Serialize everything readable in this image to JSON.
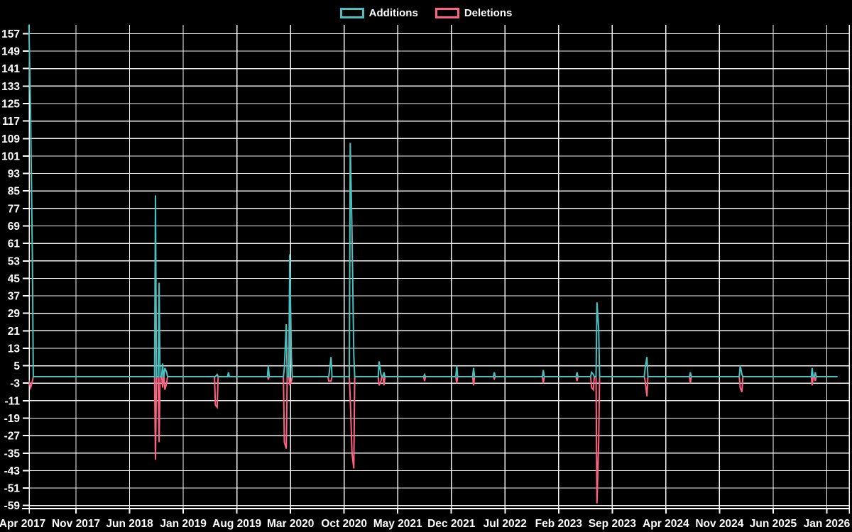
{
  "legend": {
    "items": [
      {
        "label": "Additions",
        "color": "#4bc0c0"
      },
      {
        "label": "Deletions",
        "color": "#ff6384"
      }
    ]
  },
  "chart_data": {
    "type": "line",
    "title": "",
    "grid": true,
    "legend_position": "top-center",
    "background_color": "#000000",
    "gridline_color": "#f2f2f2",
    "text_color": "#ffffff",
    "series_colors": {
      "additions": "#4bc0c0",
      "deletions": "#ff6384"
    },
    "series_names": [
      "Additions",
      "Deletions"
    ],
    "x_axis": {
      "tick_labels": [
        "Apr 2017",
        "Nov 2017",
        "Jun 2018",
        "Jan 2019",
        "Aug 2019",
        "Mar 2020",
        "Oct 2020",
        "May 2021",
        "Dec 2021",
        "Jul 2022",
        "Feb 2023",
        "Sep 2023",
        "Apr 2024",
        "Nov 2024",
        "Jun 2025",
        "Jan 2026"
      ],
      "months_per_tick": 7
    },
    "y_axis": {
      "ticks": [
        157,
        149,
        141,
        133,
        125,
        117,
        109,
        101,
        93,
        85,
        77,
        69,
        61,
        53,
        45,
        37,
        29,
        21,
        13,
        5,
        -3,
        -11,
        -19,
        -27,
        -35,
        -43,
        -51,
        -59
      ],
      "step": 8,
      "ylim": [
        -61,
        162
      ]
    },
    "baseline_value": 0,
    "data_start_month": 0.85,
    "data_end_month": 106.4,
    "points_note": "m = months after first tick (Apr 2017); additions/deletions are weekly spike values, series sit at 0 between events",
    "points": [
      {
        "m": 0.85,
        "additions": 161,
        "deletions": -2
      },
      {
        "m": 1.08,
        "additions": 118,
        "deletions": -5
      },
      {
        "m": 1.31,
        "additions": 55,
        "deletions": -2
      },
      {
        "m": 17.38,
        "additions": 83,
        "deletions": -38
      },
      {
        "m": 17.85,
        "additions": 43,
        "deletions": -30
      },
      {
        "m": 18.3,
        "additions": 6,
        "deletions": -5
      },
      {
        "m": 18.6,
        "additions": 4,
        "deletions": -6
      },
      {
        "m": 18.83,
        "additions": 2,
        "deletions": -3
      },
      {
        "m": 25.2,
        "additions": 0,
        "deletions": -13
      },
      {
        "m": 25.43,
        "additions": 1,
        "deletions": -14
      },
      {
        "m": 26.9,
        "additions": 2,
        "deletions": 0
      },
      {
        "m": 32.1,
        "additions": 5,
        "deletions": -1
      },
      {
        "m": 34.2,
        "additions": 4,
        "deletions": -30
      },
      {
        "m": 34.45,
        "additions": 24,
        "deletions": -33
      },
      {
        "m": 34.9,
        "additions": 56,
        "deletions": -4
      },
      {
        "m": 35.12,
        "additions": 9,
        "deletions": -2
      },
      {
        "m": 40.0,
        "additions": 0,
        "deletions": -2
      },
      {
        "m": 40.3,
        "additions": 9,
        "deletions": -2
      },
      {
        "m": 42.8,
        "additions": 107,
        "deletions": -10
      },
      {
        "m": 43.03,
        "additions": 66,
        "deletions": -35
      },
      {
        "m": 43.26,
        "additions": 10,
        "deletions": -42
      },
      {
        "m": 46.57,
        "additions": 7,
        "deletions": -4
      },
      {
        "m": 46.8,
        "additions": 1,
        "deletions": -2
      },
      {
        "m": 47.2,
        "additions": 2,
        "deletions": -4
      },
      {
        "m": 52.5,
        "additions": 1,
        "deletions": -2
      },
      {
        "m": 56.7,
        "additions": 5,
        "deletions": -3
      },
      {
        "m": 58.9,
        "additions": 4,
        "deletions": -4
      },
      {
        "m": 61.6,
        "additions": 2,
        "deletions": -1
      },
      {
        "m": 68.0,
        "additions": 3,
        "deletions": -3
      },
      {
        "m": 72.4,
        "additions": 2,
        "deletions": -2
      },
      {
        "m": 74.3,
        "additions": 2,
        "deletions": -5
      },
      {
        "m": 74.53,
        "additions": 1,
        "deletions": -6
      },
      {
        "m": 75.0,
        "additions": 34,
        "deletions": -58
      },
      {
        "m": 75.23,
        "additions": 22,
        "deletions": -30
      },
      {
        "m": 81.3,
        "additions": 4,
        "deletions": -2
      },
      {
        "m": 81.53,
        "additions": 9,
        "deletions": -9
      },
      {
        "m": 87.2,
        "additions": 2,
        "deletions": -3
      },
      {
        "m": 93.7,
        "additions": 5,
        "deletions": -5
      },
      {
        "m": 93.93,
        "additions": 1,
        "deletions": -7
      },
      {
        "m": 103.1,
        "additions": 4,
        "deletions": -4
      },
      {
        "m": 103.5,
        "additions": 2,
        "deletions": -2
      }
    ]
  }
}
